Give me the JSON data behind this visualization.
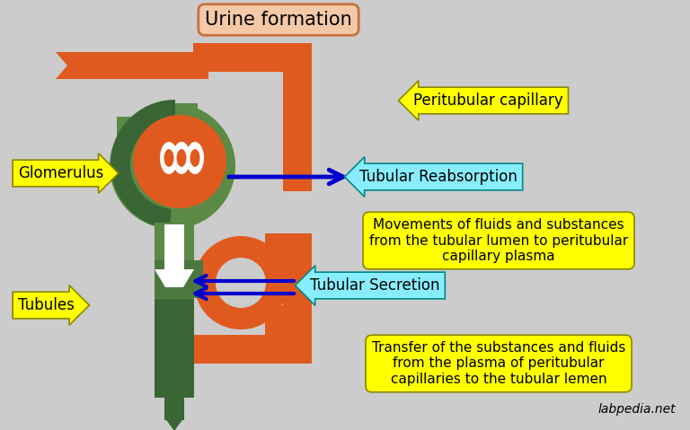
{
  "title": "Urine formation",
  "title_box_color": "#F5C8A8",
  "title_box_edge": "#C87040",
  "bg_color": "#CCCCCC",
  "orange": "#E05A20",
  "green": "#5A8A45",
  "green_dark": "#3A6535",
  "green_mid": "#4A7840",
  "yellow": "#FFFF00",
  "cyan": "#88EEFF",
  "blue_arrow": "#0000CC",
  "white": "#FFFFFF",
  "labels": {
    "glomerulus": "Glomerulus",
    "tubules": "Tubules",
    "peritubular": "Peritubular capillary",
    "reabsorption": "Tubular Reabsorption",
    "reabsorption_desc": "Movements of fluids and substances\nfrom the tubular lumen to peritubular\ncapillary plasma",
    "secretion": "Tubular Secretion",
    "secretion_desc": "Transfer of the substances and fluids\nfrom the plasma of peritubular\ncapillaries to the tubular lemen",
    "watermark": "labpedia.net"
  }
}
